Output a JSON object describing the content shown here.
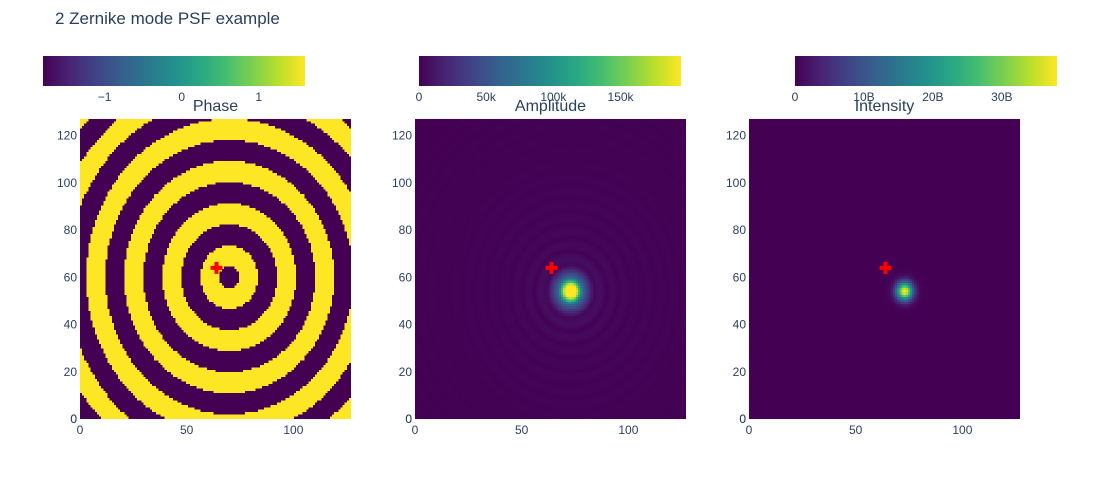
{
  "figure": {
    "title": "2 Zernike mode PSF example"
  },
  "chart_data": [
    {
      "type": "heatmap",
      "title": "Phase",
      "colorscale": "viridis",
      "pattern": "concentric-rings-binary",
      "center": [
        70,
        60
      ],
      "ring_period": 18,
      "z_range": [
        -1.8,
        1.6
      ],
      "colorbar": {
        "ticks": [
          -1,
          0,
          1
        ],
        "tick_labels": [
          "−1",
          "0",
          "1"
        ]
      },
      "xlim": [
        0,
        127
      ],
      "ylim": [
        0,
        127
      ],
      "x_ticks": [
        0,
        50,
        100
      ],
      "y_ticks": [
        0,
        20,
        40,
        60,
        80,
        100,
        120
      ],
      "marker": {
        "symbol": "cross",
        "color": "#ff0000",
        "x": 64,
        "y": 64
      }
    },
    {
      "type": "heatmap",
      "title": "Amplitude",
      "colorscale": "viridis",
      "pattern": "airy-amplitude",
      "center": [
        73,
        54
      ],
      "z_range": [
        0,
        195000
      ],
      "colorbar": {
        "ticks": [
          0,
          50000,
          100000,
          150000
        ],
        "tick_labels": [
          "0",
          "50k",
          "100k",
          "150k"
        ]
      },
      "xlim": [
        0,
        127
      ],
      "ylim": [
        0,
        127
      ],
      "x_ticks": [
        0,
        50,
        100
      ],
      "y_ticks": [
        0,
        20,
        40,
        60,
        80,
        100,
        120
      ],
      "marker": {
        "symbol": "cross",
        "color": "#ff0000",
        "x": 64,
        "y": 64
      }
    },
    {
      "type": "heatmap",
      "title": "Intensity",
      "colorscale": "viridis",
      "pattern": "airy-intensity",
      "center": [
        73,
        54
      ],
      "z_range": [
        0,
        38000000000
      ],
      "colorbar": {
        "ticks": [
          0,
          10000000000,
          20000000000,
          30000000000
        ],
        "tick_labels": [
          "0",
          "10B",
          "20B",
          "30B"
        ]
      },
      "xlim": [
        0,
        127
      ],
      "ylim": [
        0,
        127
      ],
      "x_ticks": [
        0,
        50,
        100
      ],
      "y_ticks": [
        0,
        20,
        40,
        60,
        80,
        100,
        120
      ],
      "marker": {
        "symbol": "cross",
        "color": "#ff0000",
        "x": 64,
        "y": 64
      }
    }
  ]
}
